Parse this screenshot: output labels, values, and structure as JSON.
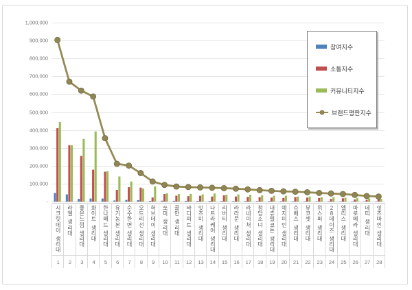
{
  "window": {
    "background": "#ffffff",
    "frame_border_color": "#d9d9d9"
  },
  "chart_data": {
    "type": "bar",
    "title": "",
    "xlabel": "",
    "ylabel": "",
    "ylim": [
      0,
      1000000
    ],
    "grid": true,
    "grid_color": "#e6e6e6",
    "axis_color": "#cfcfcf",
    "tick_color": "#737373",
    "label_color": "#595959",
    "legend_position": "top-right",
    "y_ticks": [
      "-",
      "100,000",
      "200,000",
      "300,000",
      "400,000",
      "500,000",
      "600,000",
      "700,000",
      "800,000",
      "900,000",
      "1,000,000"
    ],
    "categories": [
      "시크릿데이 생리대",
      "라엘 생리대",
      "좋은느낌 생리대",
      "화이트 생리대",
      "한나패드 생리대",
      "유기농본 생리대",
      "순수한면 생리대",
      "오드리선 생리대",
      "허브데이 생리대",
      "쏘피 생리대",
      "콜만 생리대",
      "바디피트 생리대",
      "잇츠미 생리대",
      "나트라케어 생리대",
      "리버티 생리대",
      "라라문 생리대",
      "라네이처 생리대",
      "청담소녀 생리대",
      "내츄럴코튼 생리대",
      "예지미인 생리대",
      "슈베스 생리대",
      "뷰코셋 생리대",
      "위스퍼 생리대",
      "28데이즈 생리대",
      "엘리스 생리대",
      "마로메라 생리대",
      "네띠 생리대",
      "잇츠마인 생리대"
    ],
    "ranks": [
      "1",
      "2",
      "3",
      "4",
      "5",
      "6",
      "7",
      "8",
      "9",
      "10",
      "11",
      "12",
      "13",
      "14",
      "15",
      "16",
      "17",
      "18",
      "19",
      "20",
      "21",
      "22",
      "23",
      "24",
      "25",
      "26",
      "27",
      "28"
    ],
    "series": [
      {
        "name": "참여지수",
        "type": "bar",
        "color": "#4F81BD",
        "values": [
          48000,
          40000,
          15000,
          17000,
          17000,
          6000,
          9000,
          8000,
          4000,
          5000,
          4500,
          4000,
          3500,
          3500,
          3000,
          3000,
          3000,
          2500,
          2500,
          2500,
          2000,
          2000,
          2000,
          2000,
          1500,
          1500,
          1200,
          1000
        ]
      },
      {
        "name": "소통지수",
        "type": "bar",
        "color": "#C0504D",
        "values": [
          410000,
          315000,
          255000,
          178000,
          167000,
          65000,
          80000,
          78000,
          23000,
          42000,
          33000,
          30000,
          32000,
          28000,
          35000,
          28000,
          26000,
          25000,
          22000,
          20000,
          25000,
          22000,
          20000,
          15000,
          18000,
          12000,
          10000,
          12000
        ]
      },
      {
        "name": "커뮤니티지수",
        "type": "bar",
        "color": "#9BBB59",
        "values": [
          445000,
          315000,
          350000,
          392000,
          170000,
          140000,
          112000,
          73000,
          85000,
          46000,
          42000,
          43000,
          40000,
          45000,
          38000,
          40000,
          38000,
          35000,
          32000,
          33000,
          28000,
          28000,
          25000,
          25000,
          21000,
          20000,
          18000,
          15000
        ]
      },
      {
        "name": "브랜드평판지수",
        "type": "line",
        "color": "#948A54",
        "marker_color": "#8F8555",
        "values": [
          903000,
          670000,
          620000,
          587000,
          354000,
          211000,
          201000,
          159000,
          112000,
          93000,
          84000,
          81000,
          79000,
          77000,
          75000,
          72000,
          68000,
          64000,
          60000,
          57000,
          55000,
          52000,
          48000,
          45000,
          42000,
          37000,
          31000,
          28000
        ]
      }
    ]
  }
}
